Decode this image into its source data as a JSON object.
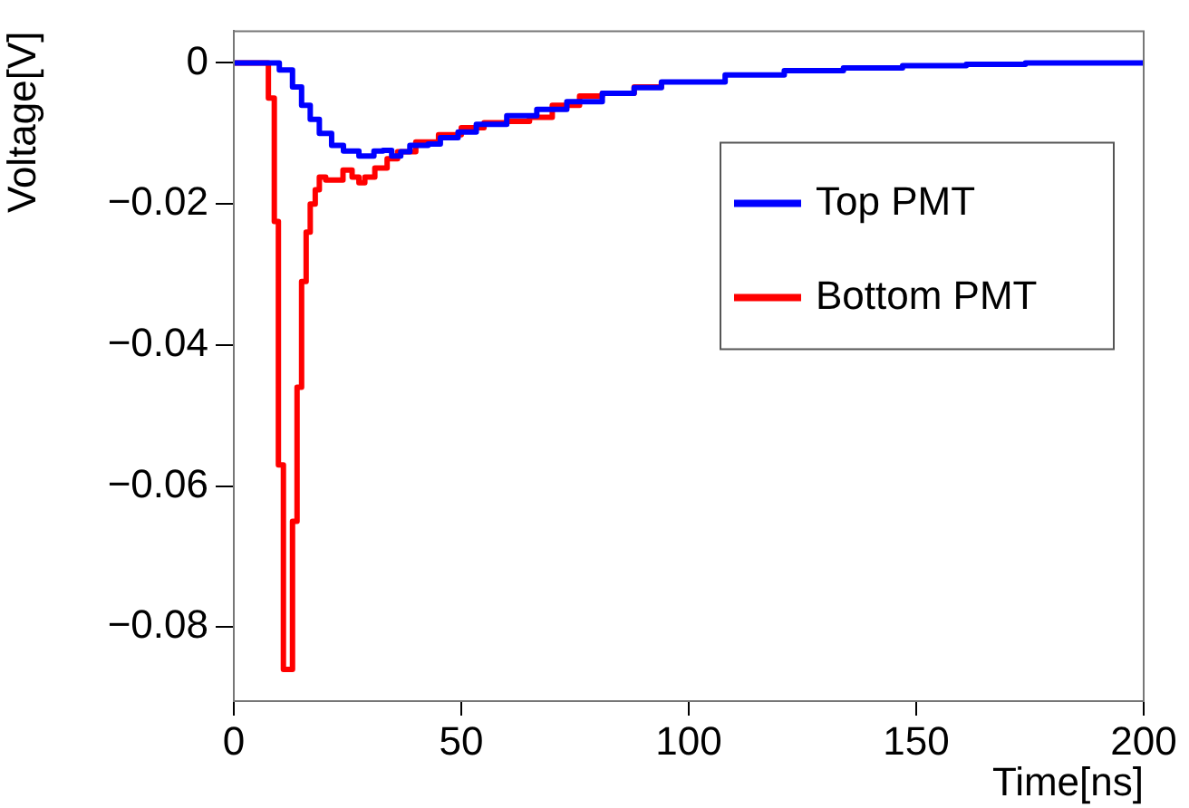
{
  "chart_data": {
    "type": "step",
    "xlabel": "Time[ns]",
    "ylabel": "Voltage[V]",
    "xlim": [
      0,
      200
    ],
    "xticks": [
      0,
      50,
      100,
      150,
      200
    ],
    "ylim": [
      -0.0905,
      0.0045
    ],
    "yticks": [
      {
        "value": -0.08,
        "label": "−0.08"
      },
      {
        "value": -0.06,
        "label": "−0.06"
      },
      {
        "value": -0.04,
        "label": "−0.04"
      },
      {
        "value": -0.02,
        "label": "−0.02"
      },
      0
    ],
    "grid": false,
    "legend": "top right",
    "marker": "none",
    "line_style": "solid",
    "series": [
      {
        "name": "Top PMT",
        "color": "#0000ff",
        "x": [
          0,
          10,
          12.9,
          14.9,
          16.8,
          18.8,
          21.5,
          24.1,
          27.5,
          30.8,
          32.8,
          34.7,
          36.7,
          38.7,
          42.7,
          45.4,
          49.3,
          53.3,
          60,
          66.6,
          73.2,
          81,
          88,
          94,
          108,
          121,
          134,
          147,
          161,
          174,
          200
        ],
        "values": [
          0,
          -0.001,
          -0.0034,
          -0.006,
          -0.008,
          -0.01,
          -0.0117,
          -0.0125,
          -0.0132,
          -0.0125,
          -0.0124,
          -0.0132,
          -0.0126,
          -0.0117,
          -0.0115,
          -0.0106,
          -0.0098,
          -0.0087,
          -0.0075,
          -0.0066,
          -0.0055,
          -0.0043,
          -0.0035,
          -0.0027,
          -0.0017,
          -0.0011,
          -0.0007,
          -0.0004,
          -0.0002,
          0,
          0
        ]
      },
      {
        "name": "Bottom PMT",
        "color": "#ff0000",
        "x": [
          0,
          7.6,
          8.9,
          9.8,
          10.9,
          12.9,
          13.9,
          14.9,
          15.9,
          16.8,
          17.9,
          18.8,
          20.2,
          24,
          26,
          27.5,
          28.8,
          31,
          33.7,
          36,
          40,
          45,
          50,
          55,
          60,
          65,
          70,
          76,
          81,
          88,
          94
        ],
        "values": [
          0,
          -0.005,
          -0.0225,
          -0.057,
          -0.086,
          -0.065,
          -0.046,
          -0.031,
          -0.024,
          -0.02,
          -0.018,
          -0.0162,
          -0.0166,
          -0.0152,
          -0.0162,
          -0.017,
          -0.0162,
          -0.0149,
          -0.0136,
          -0.0126,
          -0.0112,
          -0.0102,
          -0.0092,
          -0.0085,
          -0.0083,
          -0.0077,
          -0.006,
          -0.0047,
          -0.0043,
          -0.0034,
          -0.0027
        ]
      }
    ]
  }
}
